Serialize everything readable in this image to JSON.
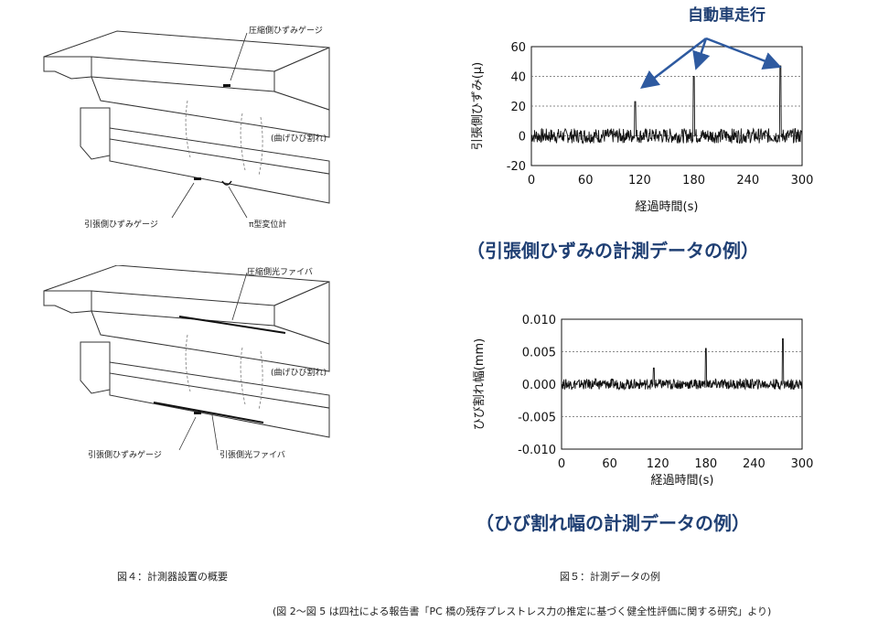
{
  "left": {
    "diagram1_labels": {
      "compression_gauge": "圧縮側ひずみゲージ",
      "bending_crack": "(曲げひび割れ)",
      "tension_gauge": "引張側ひずみゲージ",
      "pi_gauge": "π型変位計"
    },
    "diagram2_labels": {
      "compression_fiber": "圧縮側光ファイバ",
      "bending_crack": "(曲げひび割れ)",
      "tension_gauge": "引張側ひずみゲージ",
      "tension_fiber": "引張側光ファイバ"
    },
    "figure_caption": "図４：計測器設置の概要"
  },
  "right": {
    "annotation": "自動車走行",
    "chart_strain_caption": "（引張側ひずみの計測データの例）",
    "chart_crack_caption": "（ひび割れ幅の計測データの例）",
    "figure_caption": "図５：計測データの例"
  },
  "source_note": "(図 2〜図 5 は四社による報告書「PC 橋の残存プレストレス力の推定に基づく健全性評価に関する研究」より)",
  "chart_data": [
    {
      "type": "line",
      "xlabel": "経過時間(s)",
      "ylabel": "引張側ひずみ(μ)",
      "xlim": [
        0,
        300
      ],
      "ylim": [
        -20,
        60
      ],
      "x_ticks": [
        0,
        60,
        120,
        180,
        240,
        300
      ],
      "y_ticks": [
        -20,
        0,
        20,
        40,
        60
      ],
      "y_tick_labels": [
        "-20",
        "0",
        "20",
        "40",
        "60"
      ],
      "grid": "horizontal-dashed",
      "baseline_noise": 5,
      "peaks": [
        {
          "x": 115,
          "y": 23
        },
        {
          "x": 180,
          "y": 40
        },
        {
          "x": 276,
          "y": 47
        }
      ]
    },
    {
      "type": "line",
      "xlabel": "経過時間(s)",
      "ylabel": "ひび割れ幅(mm)",
      "xlim": [
        0,
        300
      ],
      "ylim": [
        -0.01,
        0.01
      ],
      "x_ticks": [
        0,
        60,
        120,
        180,
        240,
        300
      ],
      "y_ticks": [
        -0.01,
        -0.005,
        0,
        0.005,
        0.01
      ],
      "y_tick_labels": [
        "-0.010",
        "-0.005",
        "0.000",
        "0.005",
        "0.010"
      ],
      "grid": "horizontal-dashed",
      "baseline_noise": 0.0008,
      "peaks": [
        {
          "x": 115,
          "y": 0.0025
        },
        {
          "x": 180,
          "y": 0.0055
        },
        {
          "x": 276,
          "y": 0.007
        }
      ]
    }
  ]
}
